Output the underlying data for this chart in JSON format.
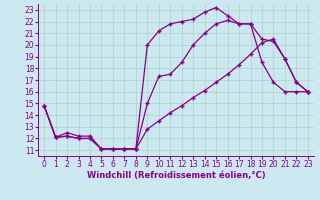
{
  "xlabel": "Windchill (Refroidissement éolien,°C)",
  "bg_color": "#cce8f0",
  "grid_color": "#b0d8c8",
  "line_color": "#880088",
  "line1_x": [
    0,
    1,
    2,
    3,
    4,
    5,
    6,
    7,
    8,
    9,
    10,
    11,
    12,
    13,
    14,
    15,
    16,
    17,
    18,
    19,
    20,
    21,
    22,
    23
  ],
  "line1_y": [
    14.8,
    12.1,
    12.2,
    12.0,
    12.0,
    11.1,
    11.1,
    11.1,
    11.1,
    20.0,
    21.2,
    21.8,
    22.0,
    22.2,
    22.8,
    23.2,
    22.5,
    21.8,
    21.8,
    18.5,
    16.8,
    16.0,
    16.0,
    16.0
  ],
  "line2_x": [
    0,
    1,
    2,
    3,
    4,
    5,
    6,
    7,
    8,
    9,
    10,
    11,
    12,
    13,
    14,
    15,
    16,
    17,
    18,
    19,
    20,
    21,
    22,
    23
  ],
  "line2_y": [
    14.8,
    12.1,
    12.2,
    12.0,
    12.0,
    11.1,
    11.1,
    11.1,
    11.1,
    15.0,
    17.3,
    17.5,
    18.5,
    20.0,
    21.0,
    21.8,
    22.1,
    21.8,
    21.8,
    20.5,
    20.3,
    18.8,
    16.8,
    16.0
  ],
  "line3_x": [
    0,
    1,
    2,
    3,
    4,
    5,
    6,
    7,
    8,
    9,
    10,
    11,
    12,
    13,
    14,
    15,
    16,
    17,
    18,
    19,
    20,
    21,
    22,
    23
  ],
  "line3_y": [
    14.8,
    12.1,
    12.5,
    12.2,
    12.2,
    11.1,
    11.1,
    11.1,
    11.1,
    12.8,
    13.5,
    14.2,
    14.8,
    15.5,
    16.1,
    16.8,
    17.5,
    18.3,
    19.2,
    20.2,
    20.5,
    18.8,
    16.8,
    16.0
  ],
  "xlim": [
    -0.5,
    23.5
  ],
  "ylim": [
    10.5,
    23.5
  ],
  "yticks": [
    11,
    12,
    13,
    14,
    15,
    16,
    17,
    18,
    19,
    20,
    21,
    22,
    23
  ],
  "xticks": [
    0,
    1,
    2,
    3,
    4,
    5,
    6,
    7,
    8,
    9,
    10,
    11,
    12,
    13,
    14,
    15,
    16,
    17,
    18,
    19,
    20,
    21,
    22,
    23
  ],
  "marker": "+",
  "markersize": 3,
  "linewidth": 0.9,
  "fontsize_tick": 5.5,
  "fontsize_xlabel": 6.0
}
